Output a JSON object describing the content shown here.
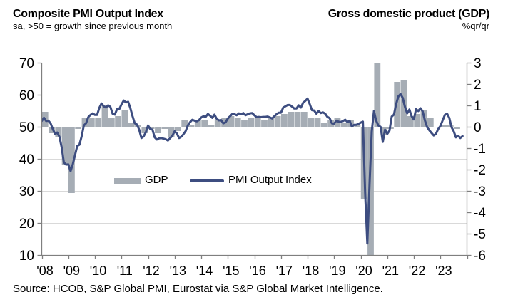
{
  "header": {
    "left_title": "Composite PMI Output Index",
    "left_subtitle": "sa, >50 = growth since previous month",
    "right_title": "Gross domestic product (GDP)",
    "right_subtitle": "%qr/qr"
  },
  "legend": {
    "gdp_label": "GDP",
    "pmi_label": "PMI Output Index"
  },
  "source": "Source: HCOB, S&P Global PMI, Eurostat via S&P Global Market Intelligence.",
  "colors": {
    "bar": "#a6adb5",
    "line": "#3d4d80",
    "grid": "#d9d9d9",
    "axis": "#7f7f7f",
    "text": "#000000"
  },
  "chart_data": {
    "type": "combo",
    "title": "Composite PMI Output Index vs Gross domestic product (GDP)",
    "x_axis": {
      "tick_labels": [
        "'08",
        "'09",
        "'10",
        "'11",
        "'12",
        "'13",
        "'14",
        "'15",
        "'16",
        "'17",
        "'18",
        "'19",
        "'20",
        "'21",
        "'22",
        "'23"
      ],
      "years_span": 16,
      "start_year": 2008
    },
    "y_axis_left": {
      "ticks": [
        70,
        60,
        50,
        40,
        30,
        20,
        10
      ],
      "range": [
        10,
        70
      ],
      "applies_to": "PMI Output Index"
    },
    "y_axis_right": {
      "ticks": [
        3,
        2,
        1,
        0,
        -1,
        -2,
        -3,
        -4,
        -5,
        -6
      ],
      "range": [
        -6,
        3
      ],
      "label": "%qr/qr",
      "applies_to": "GDP"
    },
    "grid": "horizontal-only",
    "legend_position": "inside-middle-left",
    "series": [
      {
        "name": "GDP",
        "type": "bar",
        "axis": "right",
        "frequency": "quarterly",
        "start": "2008-Q1",
        "values": [
          0.7,
          -0.3,
          -0.5,
          -1.8,
          -3.1,
          -0.1,
          0.4,
          0.4,
          0.4,
          1.0,
          0.4,
          0.5,
          0.8,
          0.2,
          0.1,
          -0.3,
          -0.1,
          -0.3,
          -0.1,
          -0.5,
          -0.2,
          0.3,
          0.1,
          0.3,
          0.3,
          0.1,
          0.3,
          0.4,
          0.5,
          0.4,
          0.3,
          0.4,
          0.5,
          0.3,
          0.4,
          0.5,
          0.6,
          0.7,
          0.7,
          0.7,
          0.4,
          0.4,
          0.2,
          0.3,
          0.4,
          0.2,
          0.3,
          0.1,
          -3.4,
          -6.0,
          3.0,
          -0.4,
          -0.1,
          2.1,
          2.2,
          0.5,
          0.6,
          0.8,
          0.4,
          0.0,
          0.1,
          0.1,
          -0.1
        ],
        "note_clipping": "2020-Q2 bar reaches axis minimum (-6) and 2020-Q3 bar reaches axis maximum (3), clipped by plot area"
      },
      {
        "name": "PMI Output Index",
        "type": "line",
        "axis": "left",
        "frequency": "monthly",
        "start": "2008-01",
        "values": [
          51.8,
          52.8,
          51.8,
          51.9,
          51.1,
          49.3,
          47.8,
          48.2,
          46.9,
          43.6,
          38.9,
          38.2,
          38.3,
          36.2,
          38.3,
          41.1,
          44.0,
          44.4,
          47.0,
          50.4,
          51.1,
          53.0,
          53.7,
          54.2,
          53.7,
          53.7,
          55.9,
          57.3,
          56.4,
          56.0,
          56.7,
          56.2,
          54.1,
          53.8,
          55.5,
          55.5,
          57.0,
          58.2,
          57.6,
          57.8,
          55.8,
          53.3,
          51.1,
          50.7,
          49.1,
          46.5,
          47.0,
          48.3,
          50.4,
          49.3,
          49.1,
          46.7,
          46.0,
          46.4,
          46.5,
          46.3,
          46.1,
          45.7,
          46.5,
          47.2,
          48.6,
          47.9,
          46.5,
          46.9,
          47.7,
          48.7,
          50.5,
          51.5,
          52.2,
          51.9,
          51.7,
          52.1,
          52.9,
          53.3,
          53.1,
          54.0,
          53.5,
          52.8,
          53.8,
          52.5,
          52.0,
          52.1,
          51.1,
          51.4,
          52.6,
          53.3,
          54.0,
          53.9,
          53.6,
          54.2,
          53.9,
          54.3,
          53.6,
          53.9,
          54.2,
          54.3,
          53.6,
          53.0,
          53.1,
          53.0,
          53.1,
          53.1,
          53.2,
          52.9,
          52.6,
          53.3,
          53.9,
          54.4,
          54.4,
          56.0,
          56.4,
          56.8,
          56.8,
          56.3,
          55.7,
          55.7,
          56.7,
          56.0,
          57.5,
          58.1,
          58.8,
          57.1,
          55.2,
          55.1,
          54.1,
          54.9,
          54.3,
          54.5,
          54.1,
          53.1,
          52.7,
          51.1,
          51.0,
          51.9,
          51.6,
          51.5,
          51.8,
          52.2,
          51.5,
          51.9,
          50.1,
          50.6,
          50.6,
          50.9,
          51.3,
          51.6,
          29.7,
          13.6,
          31.9,
          48.5,
          54.9,
          51.9,
          50.4,
          50.0,
          45.3,
          49.1,
          47.8,
          48.8,
          53.2,
          53.8,
          57.1,
          59.5,
          60.2,
          59.0,
          56.2,
          54.2,
          55.4,
          53.3,
          52.3,
          55.5,
          54.9,
          55.8,
          54.8,
          52.0,
          49.9,
          48.9,
          48.1,
          47.3,
          47.8,
          49.3,
          50.3,
          52.0,
          53.7,
          54.1,
          52.8,
          49.9,
          48.6,
          46.7,
          47.2,
          46.5,
          47.1
        ]
      }
    ]
  }
}
